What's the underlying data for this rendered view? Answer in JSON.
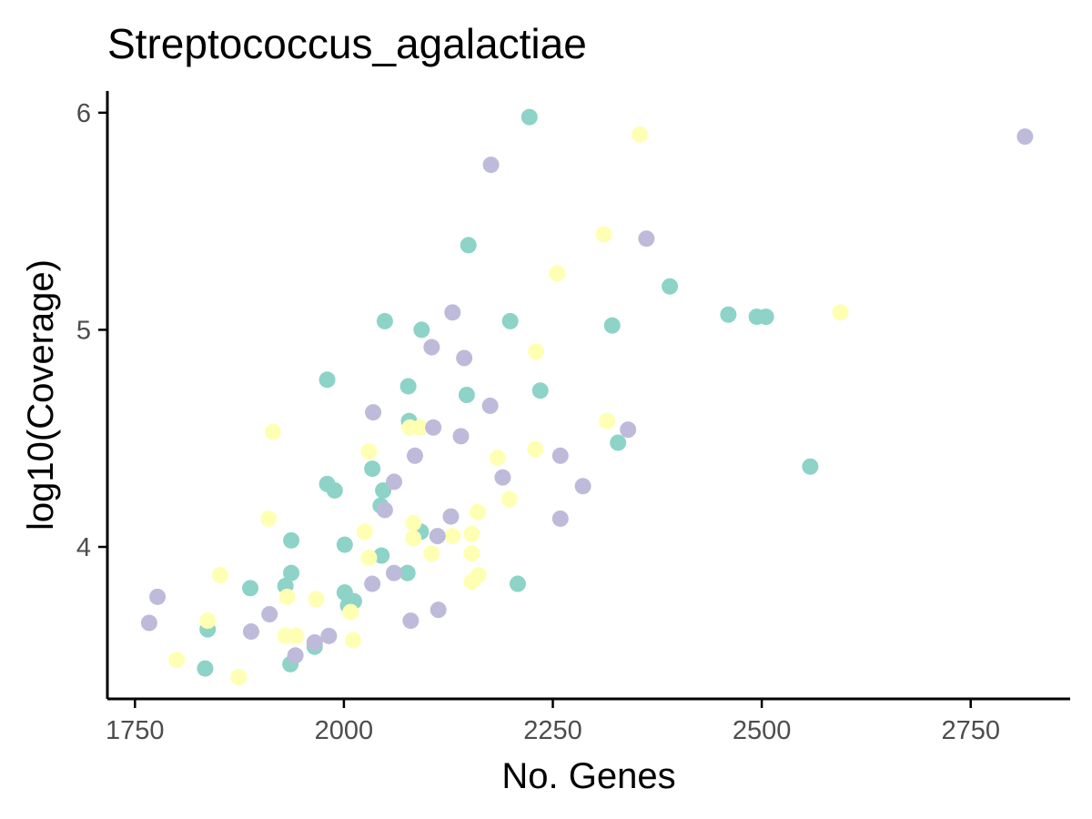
{
  "chart_data": {
    "type": "scatter",
    "title": "Streptococcus_agalactiae",
    "xlabel": "No. Genes",
    "ylabel": "log10(Coverage)",
    "xlim": [
      1717,
      2869
    ],
    "ylim": [
      3.3,
      6.1
    ],
    "xticks": [
      1750,
      2000,
      2250,
      2500,
      2750
    ],
    "yticks": [
      4,
      5,
      6
    ],
    "grid": false,
    "legend": "none",
    "series": [
      {
        "color": "#8dd3c7",
        "points": [
          [
            2222,
            5.98
          ],
          [
            2149,
            5.39
          ],
          [
            2390,
            5.2
          ],
          [
            2460,
            5.07
          ],
          [
            2494,
            5.06
          ],
          [
            2505,
            5.06
          ],
          [
            2049,
            5.04
          ],
          [
            2199,
            5.04
          ],
          [
            2093,
            5.0
          ],
          [
            2321,
            5.02
          ],
          [
            1980,
            4.77
          ],
          [
            2077,
            4.74
          ],
          [
            2235,
            4.72
          ],
          [
            2147,
            4.7
          ],
          [
            2078,
            4.58
          ],
          [
            2328,
            4.48
          ],
          [
            2558,
            4.37
          ],
          [
            2034,
            4.36
          ],
          [
            1980,
            4.29
          ],
          [
            1989,
            4.26
          ],
          [
            2047,
            4.26
          ],
          [
            2044,
            4.19
          ],
          [
            2092,
            4.07
          ],
          [
            1937,
            4.03
          ],
          [
            2001,
            4.01
          ],
          [
            2045,
            3.96
          ],
          [
            1937,
            3.88
          ],
          [
            2076,
            3.88
          ],
          [
            1888,
            3.81
          ],
          [
            1930,
            3.82
          ],
          [
            2208,
            3.83
          ],
          [
            2001,
            3.79
          ],
          [
            2012,
            3.75
          ],
          [
            2005,
            3.73
          ],
          [
            1837,
            3.62
          ],
          [
            1965,
            3.54
          ],
          [
            1834,
            3.44
          ],
          [
            1936,
            3.46
          ]
        ]
      },
      {
        "color": "#ffffb3",
        "points": [
          [
            2354,
            5.9
          ],
          [
            2311,
            5.44
          ],
          [
            2255,
            5.26
          ],
          [
            2594,
            5.08
          ],
          [
            2230,
            4.9
          ],
          [
            2315,
            4.58
          ],
          [
            2079,
            4.55
          ],
          [
            2091,
            4.55
          ],
          [
            1915,
            4.53
          ],
          [
            2030,
            4.44
          ],
          [
            2229,
            4.45
          ],
          [
            2184,
            4.41
          ],
          [
            2198,
            4.22
          ],
          [
            2160,
            4.16
          ],
          [
            1910,
            4.13
          ],
          [
            2083,
            4.11
          ],
          [
            2025,
            4.07
          ],
          [
            2153,
            4.06
          ],
          [
            2083,
            4.04
          ],
          [
            2130,
            4.05
          ],
          [
            2105,
            3.97
          ],
          [
            2153,
            3.97
          ],
          [
            2030,
            3.95
          ],
          [
            2161,
            3.87
          ],
          [
            2153,
            3.84
          ],
          [
            1852,
            3.87
          ],
          [
            1932,
            3.77
          ],
          [
            1967,
            3.76
          ],
          [
            2008,
            3.7
          ],
          [
            1837,
            3.66
          ],
          [
            1930,
            3.59
          ],
          [
            1943,
            3.59
          ],
          [
            2011,
            3.57
          ],
          [
            1800,
            3.48
          ],
          [
            1874,
            3.4
          ]
        ]
      },
      {
        "color": "#bebada",
        "points": [
          [
            2815,
            5.89
          ],
          [
            2176,
            5.76
          ],
          [
            2362,
            5.42
          ],
          [
            2130,
            5.08
          ],
          [
            2105,
            4.92
          ],
          [
            2144,
            4.87
          ],
          [
            2175,
            4.65
          ],
          [
            2035,
            4.62
          ],
          [
            2340,
            4.54
          ],
          [
            2107,
            4.55
          ],
          [
            2140,
            4.51
          ],
          [
            2085,
            4.42
          ],
          [
            2259,
            4.42
          ],
          [
            2190,
            4.32
          ],
          [
            2060,
            4.3
          ],
          [
            2286,
            4.28
          ],
          [
            2049,
            4.17
          ],
          [
            2128,
            4.14
          ],
          [
            2259,
            4.13
          ],
          [
            2112,
            4.05
          ],
          [
            2060,
            3.88
          ],
          [
            2034,
            3.83
          ],
          [
            1777,
            3.77
          ],
          [
            1911,
            3.69
          ],
          [
            2113,
            3.71
          ],
          [
            2080,
            3.66
          ],
          [
            1767,
            3.65
          ],
          [
            1889,
            3.61
          ],
          [
            1982,
            3.59
          ],
          [
            1965,
            3.56
          ],
          [
            1942,
            3.5
          ]
        ]
      }
    ]
  }
}
